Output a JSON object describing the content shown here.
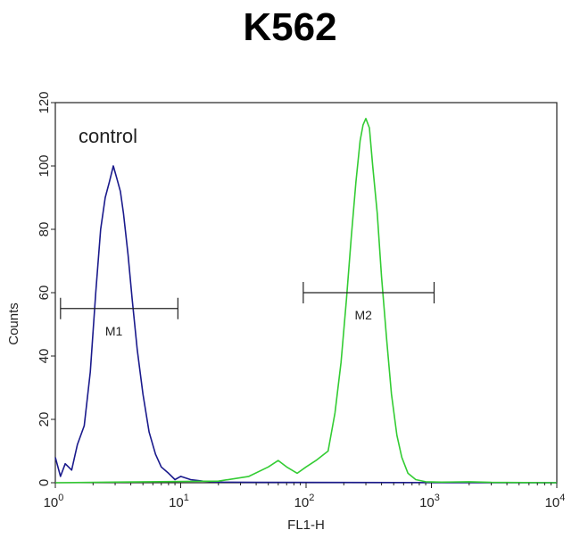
{
  "chart_data": {
    "type": "line",
    "title": "K562",
    "xlabel": "FL1-H",
    "ylabel": "Counts",
    "xscale": "log",
    "xlim": [
      1,
      10000
    ],
    "ylim": [
      0,
      120
    ],
    "y_ticks": [
      0,
      20,
      40,
      60,
      80,
      100,
      120
    ],
    "x_ticks": [
      {
        "base": "10",
        "exp": "0",
        "value": 1
      },
      {
        "base": "10",
        "exp": "1",
        "value": 10
      },
      {
        "base": "10",
        "exp": "2",
        "value": 100
      },
      {
        "base": "10",
        "exp": "3",
        "value": 1000
      },
      {
        "base": "10",
        "exp": "4",
        "value": 10000
      }
    ],
    "grid": false,
    "annotation": "control",
    "series": [
      {
        "color": "#1a1a8c",
        "points": [
          [
            1.0,
            8
          ],
          [
            1.1,
            2
          ],
          [
            1.2,
            6
          ],
          [
            1.35,
            4
          ],
          [
            1.5,
            12
          ],
          [
            1.7,
            18
          ],
          [
            1.9,
            35
          ],
          [
            2.1,
            60
          ],
          [
            2.3,
            80
          ],
          [
            2.5,
            90
          ],
          [
            2.7,
            95
          ],
          [
            2.9,
            100
          ],
          [
            3.1,
            96
          ],
          [
            3.3,
            92
          ],
          [
            3.5,
            85
          ],
          [
            3.8,
            72
          ],
          [
            4.1,
            58
          ],
          [
            4.5,
            42
          ],
          [
            5.0,
            28
          ],
          [
            5.6,
            16
          ],
          [
            6.3,
            9
          ],
          [
            7.0,
            5
          ],
          [
            8.0,
            3
          ],
          [
            9.0,
            1
          ],
          [
            10,
            2
          ],
          [
            12,
            1
          ],
          [
            15,
            0.5
          ],
          [
            20,
            0.2
          ],
          [
            40,
            0.1
          ],
          [
            10000,
            0
          ]
        ]
      },
      {
        "color": "#33cc33",
        "points": [
          [
            1,
            0
          ],
          [
            20,
            0.5
          ],
          [
            35,
            2
          ],
          [
            50,
            5
          ],
          [
            60,
            7
          ],
          [
            70,
            5
          ],
          [
            85,
            3
          ],
          [
            100,
            5
          ],
          [
            120,
            7
          ],
          [
            150,
            10
          ],
          [
            170,
            22
          ],
          [
            190,
            38
          ],
          [
            210,
            58
          ],
          [
            230,
            78
          ],
          [
            250,
            95
          ],
          [
            270,
            108
          ],
          [
            285,
            113
          ],
          [
            300,
            115
          ],
          [
            320,
            112
          ],
          [
            340,
            100
          ],
          [
            370,
            85
          ],
          [
            400,
            65
          ],
          [
            440,
            45
          ],
          [
            480,
            28
          ],
          [
            530,
            15
          ],
          [
            580,
            8
          ],
          [
            650,
            3
          ],
          [
            750,
            1
          ],
          [
            900,
            0.3
          ],
          [
            1200,
            0.2
          ],
          [
            2000,
            0.3
          ],
          [
            3000,
            0.1
          ],
          [
            10000,
            0
          ]
        ]
      }
    ],
    "markers": [
      {
        "label": "M1",
        "x_start": 1.1,
        "x_end": 9.5,
        "y": 55
      },
      {
        "label": "M2",
        "x_start": 95,
        "x_end": 1050,
        "y": 60
      }
    ]
  }
}
